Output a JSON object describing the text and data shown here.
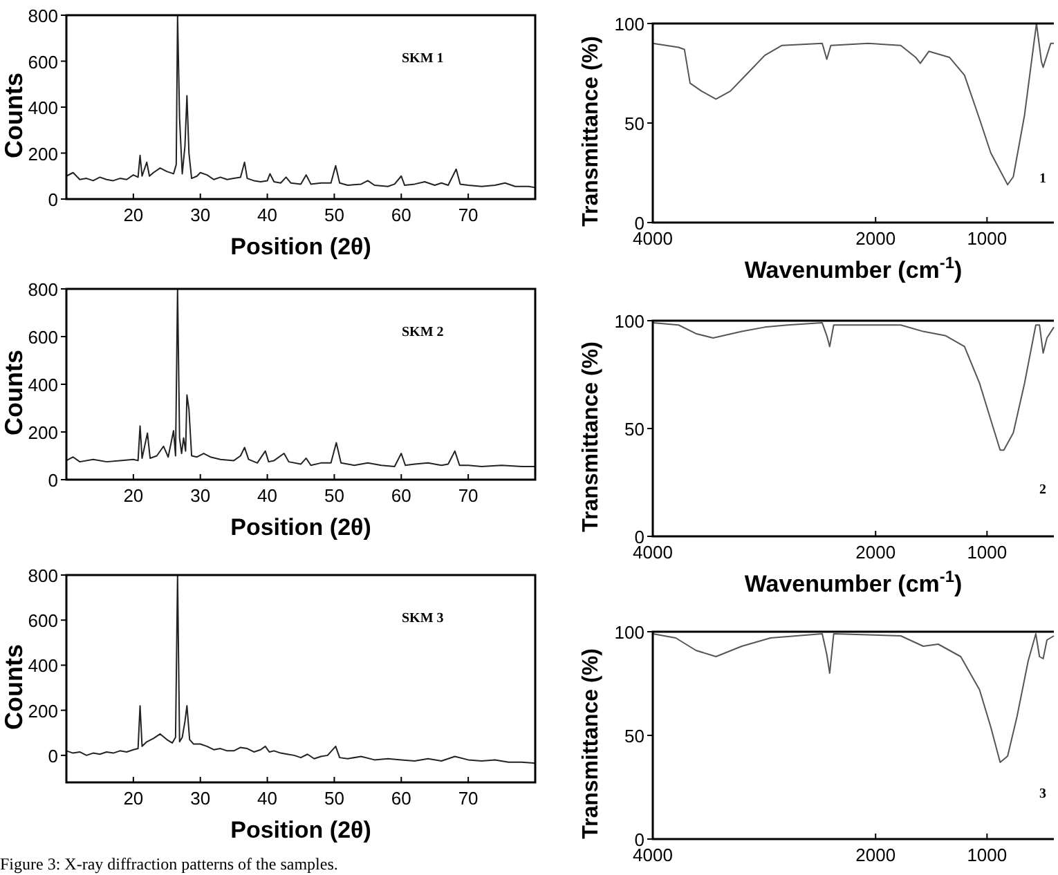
{
  "chart_data": [
    {
      "type": "line",
      "xlabel": "Position (2θ)",
      "ylabel": "Counts",
      "xlim": [
        10,
        80
      ],
      "xticks": [
        20,
        30,
        40,
        50,
        60,
        70
      ],
      "ylim": [
        0,
        800
      ],
      "yticks": [
        0,
        200,
        400,
        600,
        800
      ],
      "series": [
        {
          "name": "SKM 1",
          "color": "#222222",
          "x": [
            10,
            11,
            12,
            13,
            14,
            15,
            16,
            17,
            18,
            19,
            20,
            20.7,
            21,
            21.3,
            22,
            22.4,
            23,
            24,
            25,
            26,
            26.4,
            26.6,
            26.9,
            27.3,
            27.7,
            28,
            28.3,
            28.7,
            29.5,
            30,
            31,
            32,
            33,
            34,
            35,
            36,
            36.6,
            37,
            38,
            39,
            40,
            40.4,
            41,
            42,
            42.8,
            43.5,
            45,
            45.8,
            46.5,
            48,
            49.5,
            50.2,
            50.8,
            52,
            54,
            55,
            56,
            58,
            59,
            60,
            60.5,
            62,
            63.5,
            65,
            66,
            67,
            68.2,
            68.8,
            70,
            72,
            74,
            75.5,
            77,
            79,
            80
          ],
          "values": [
            100,
            115,
            85,
            90,
            80,
            95,
            85,
            80,
            90,
            85,
            105,
            95,
            190,
            100,
            160,
            100,
            115,
            135,
            120,
            110,
            150,
            800,
            350,
            110,
            230,
            450,
            200,
            90,
            100,
            115,
            105,
            85,
            95,
            85,
            90,
            95,
            160,
            90,
            80,
            75,
            80,
            110,
            75,
            70,
            95,
            70,
            65,
            105,
            65,
            70,
            70,
            145,
            70,
            60,
            65,
            80,
            60,
            55,
            65,
            100,
            60,
            65,
            75,
            60,
            70,
            60,
            130,
            65,
            60,
            55,
            60,
            70,
            55,
            55,
            50
          ]
        }
      ]
    },
    {
      "type": "line",
      "xlabel": "Wavenumber (cm$^{-1}$)",
      "ylabel": "Transmittance (%)",
      "xlim": [
        4000,
        400
      ],
      "xticks": [
        4000,
        2000,
        1000
      ],
      "ylim": [
        0,
        100
      ],
      "yticks": [
        0,
        50,
        100
      ],
      "series": [
        {
          "name": "1",
          "color": "#555555",
          "x": [
            4000,
            3768,
            3716,
            3665,
            3562,
            3433,
            3304,
            3149,
            2995,
            2840,
            2479,
            2438,
            2402,
            2067,
            1774,
            1640,
            1599,
            1522,
            1337,
            1202,
            1067,
            966,
            815,
            764,
            663,
            556,
            512,
            496,
            428,
            400
          ],
          "values": [
            90,
            88,
            87,
            70,
            66,
            62,
            66,
            75,
            84,
            89,
            90,
            82,
            89,
            90,
            89,
            83,
            80,
            86,
            83,
            74,
            52,
            35,
            19,
            23,
            54,
            100,
            81,
            78,
            90,
            90
          ]
        }
      ]
    },
    {
      "type": "line",
      "xlabel": "Position (2θ)",
      "ylabel": "Counts",
      "xlim": [
        10,
        80
      ],
      "xticks": [
        20,
        30,
        40,
        50,
        60,
        70
      ],
      "ylim": [
        0,
        800
      ],
      "yticks": [
        0,
        200,
        400,
        600,
        800
      ],
      "series": [
        {
          "name": "SKM 2",
          "color": "#222222",
          "x": [
            10,
            11,
            12,
            14,
            16,
            18,
            20,
            20.7,
            21,
            21.3,
            22.1,
            22.5,
            23.5,
            24.5,
            25.2,
            26,
            26.3,
            26.6,
            26.9,
            27.2,
            27.5,
            27.8,
            28,
            28.3,
            28.7,
            29.5,
            30.5,
            31.5,
            33,
            35,
            36,
            36.6,
            37.2,
            38.5,
            39.7,
            40.2,
            41,
            42.5,
            43.2,
            45,
            45.8,
            46.5,
            48,
            49.5,
            50.3,
            51,
            53,
            55,
            57,
            59,
            60,
            60.6,
            62,
            64,
            66,
            67,
            68,
            68.7,
            70,
            72,
            75,
            78,
            80
          ],
          "values": [
            80,
            95,
            75,
            85,
            75,
            80,
            85,
            80,
            225,
            90,
            195,
            90,
            100,
            140,
            95,
            205,
            100,
            800,
            175,
            110,
            175,
            120,
            355,
            295,
            100,
            95,
            110,
            95,
            85,
            80,
            100,
            135,
            85,
            70,
            120,
            75,
            80,
            110,
            75,
            65,
            90,
            60,
            70,
            70,
            155,
            70,
            60,
            70,
            60,
            55,
            110,
            60,
            65,
            70,
            60,
            65,
            120,
            60,
            60,
            55,
            60,
            55,
            55
          ]
        }
      ]
    },
    {
      "type": "line",
      "xlabel": "Wavenumber (cm$^{-1}$)",
      "ylabel": "Transmittance (%)",
      "xlim": [
        4000,
        400
      ],
      "xticks": [
        4000,
        2000,
        1000
      ],
      "ylim": [
        0,
        100
      ],
      "yticks": [
        0,
        50,
        100
      ],
      "series": [
        {
          "name": "2",
          "color": "#555555",
          "x": [
            4000,
            3768,
            3613,
            3459,
            3201,
            2995,
            2789,
            2479,
            2438,
            2412,
            2376,
            1774,
            1572,
            1370,
            1202,
            1067,
            966,
            882,
            849,
            764,
            663,
            562,
            529,
            496,
            462,
            400
          ],
          "values": [
            99,
            98,
            94,
            92,
            95,
            97,
            98,
            99,
            93,
            88,
            98,
            98,
            95,
            93,
            88,
            71,
            54,
            40,
            40,
            48,
            71,
            98,
            98,
            85,
            92,
            97
          ]
        }
      ]
    },
    {
      "type": "line",
      "xlabel": "Position (2θ)",
      "ylabel": "Counts",
      "xlim": [
        10,
        80
      ],
      "xticks": [
        20,
        30,
        40,
        50,
        60,
        70
      ],
      "ylim": [
        -120,
        800
      ],
      "yticks": [
        0,
        200,
        400,
        600,
        800
      ],
      "annotations": [
        "Figure 3: X-ray diffraction patterns of the samples."
      ],
      "series": [
        {
          "name": "SKM 3",
          "color": "#222222",
          "x": [
            10,
            11,
            12,
            13,
            14,
            15,
            16,
            17,
            18,
            19,
            20,
            20.7,
            21,
            21.3,
            22,
            23,
            24,
            25,
            25.8,
            26.3,
            26.6,
            26.9,
            27.3,
            27.7,
            28,
            28.4,
            29,
            30,
            31,
            32,
            33,
            34,
            35,
            36,
            37,
            38,
            39,
            39.7,
            40.3,
            41,
            42,
            43,
            44,
            45,
            46,
            47,
            48,
            49,
            50.2,
            50.8,
            52,
            54,
            56,
            58,
            60,
            62,
            64,
            66,
            68,
            70,
            72,
            74,
            76,
            78,
            80
          ],
          "values": [
            20,
            10,
            15,
            0,
            10,
            5,
            15,
            10,
            20,
            15,
            25,
            30,
            220,
            40,
            60,
            75,
            95,
            70,
            55,
            80,
            800,
            60,
            80,
            150,
            220,
            70,
            50,
            50,
            40,
            25,
            30,
            20,
            20,
            35,
            30,
            15,
            25,
            40,
            15,
            20,
            10,
            5,
            0,
            -10,
            5,
            -15,
            -5,
            0,
            40,
            -10,
            -15,
            -5,
            -20,
            -15,
            -20,
            -25,
            -15,
            -25,
            -5,
            -20,
            -25,
            -20,
            -30,
            -30,
            -35
          ]
        }
      ]
    },
    {
      "type": "line",
      "ylabel": "Transmittance (%)",
      "xlim": [
        4000,
        400
      ],
      "xticks": [
        4000,
        2000,
        1000
      ],
      "ylim": [
        0,
        100
      ],
      "yticks": [
        0,
        50,
        100
      ],
      "series": [
        {
          "name": "3",
          "color": "#555555",
          "x": [
            4000,
            3794,
            3613,
            3433,
            3201,
            2943,
            2479,
            2438,
            2412,
            2376,
            1774,
            1572,
            1438,
            1236,
            1067,
            966,
            882,
            815,
            731,
            630,
            562,
            529,
            496,
            462,
            400
          ],
          "values": [
            99,
            97,
            91,
            88,
            93,
            97,
            99,
            89,
            80,
            99,
            98,
            93,
            94,
            88,
            72,
            54,
            37,
            40,
            59,
            86,
            99,
            88,
            87,
            96,
            98
          ]
        }
      ]
    }
  ]
}
